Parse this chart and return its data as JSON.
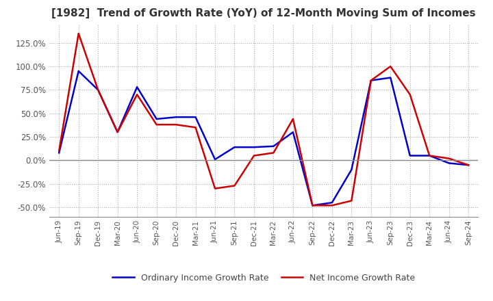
{
  "title": "[1982]  Trend of Growth Rate (YoY) of 12-Month Moving Sum of Incomes",
  "title_fontsize": 11,
  "background_color": "#ffffff",
  "grid_color": "#aaaaaa",
  "ordinary_color": "#0000cc",
  "net_color": "#cc0000",
  "legend_labels": [
    "Ordinary Income Growth Rate",
    "Net Income Growth Rate"
  ],
  "dates": [
    "Jun-19",
    "Sep-19",
    "Dec-19",
    "Mar-20",
    "Jun-20",
    "Sep-20",
    "Dec-20",
    "Mar-21",
    "Jun-21",
    "Sep-21",
    "Dec-21",
    "Mar-22",
    "Jun-22",
    "Sep-22",
    "Dec-22",
    "Mar-23",
    "Jun-23",
    "Sep-23",
    "Dec-23",
    "Mar-24",
    "Jun-24",
    "Sep-24"
  ],
  "ordinary_values": [
    0.08,
    0.95,
    0.75,
    0.3,
    0.78,
    0.44,
    0.46,
    0.46,
    0.01,
    0.14,
    0.14,
    0.15,
    0.3,
    -0.48,
    -0.45,
    -0.1,
    0.85,
    0.88,
    0.05,
    0.05,
    -0.03,
    -0.05
  ],
  "net_values": [
    0.1,
    1.35,
    0.75,
    0.3,
    0.7,
    0.38,
    0.38,
    0.35,
    -0.3,
    -0.27,
    0.05,
    0.08,
    0.44,
    -0.48,
    -0.48,
    -0.43,
    0.85,
    1.0,
    0.7,
    0.05,
    0.02,
    -0.05
  ],
  "ylim": [
    -0.6,
    1.45
  ],
  "yticks": [
    -0.5,
    -0.25,
    0.0,
    0.25,
    0.5,
    0.75,
    1.0,
    1.25
  ],
  "linewidth": 1.8
}
